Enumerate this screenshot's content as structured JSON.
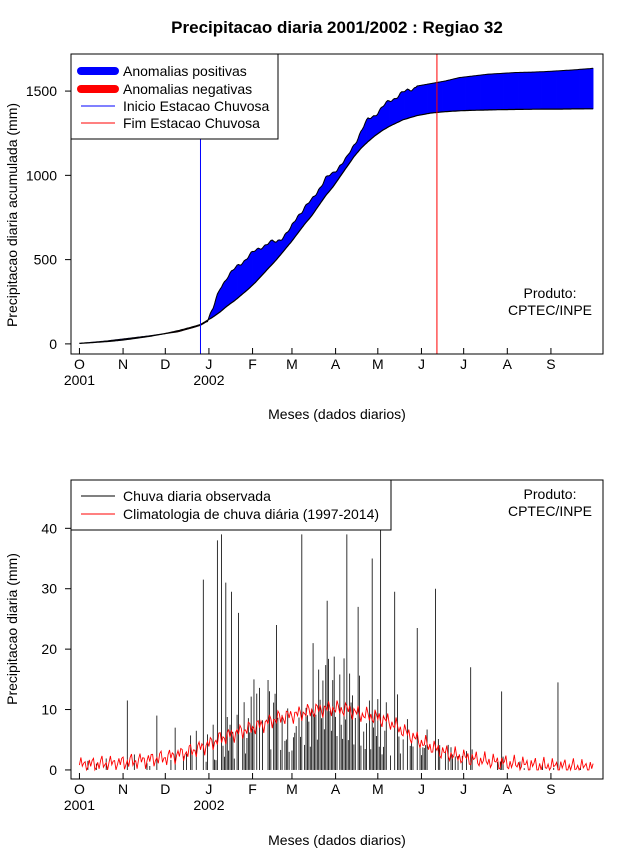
{
  "chart_data": [
    {
      "type": "area",
      "title": "Precipitacao diaria 2001/2002 : Regiao 32",
      "xlabel": "Meses (dados diarios)",
      "ylabel": "Precipitacao diaria acumulada (mm)",
      "yticks": [
        0,
        500,
        1000,
        1500
      ],
      "ylim": [
        -60,
        1720
      ],
      "xlim_days": [
        -6,
        372
      ],
      "months": [
        "O",
        "N",
        "D",
        "J",
        "F",
        "M",
        "A",
        "M",
        "J",
        "J",
        "A",
        "S"
      ],
      "month_start_days": [
        0,
        31,
        61,
        92,
        123,
        151,
        182,
        212,
        243,
        273,
        304,
        335
      ],
      "year_labels": [
        {
          "label": "2001",
          "day": 0
        },
        {
          "label": "2002",
          "day": 92
        }
      ],
      "wet_season_start_day": 86,
      "wet_season_end_day": 254,
      "observed_cumulative": {
        "day": [
          0,
          10,
          20,
          30,
          40,
          50,
          60,
          70,
          80,
          86,
          90,
          95,
          100,
          105,
          110,
          115,
          120,
          125,
          130,
          135,
          140,
          145,
          150,
          155,
          160,
          165,
          170,
          175,
          180,
          185,
          190,
          195,
          200,
          205,
          210,
          215,
          220,
          230,
          240,
          250,
          260,
          270,
          280,
          290,
          300,
          310,
          320,
          330,
          340,
          350,
          365
        ],
        "mm": [
          3,
          10,
          18,
          28,
          38,
          48,
          60,
          72,
          95,
          110,
          130,
          210,
          330,
          400,
          440,
          480,
          520,
          550,
          580,
          600,
          605,
          640,
          680,
          760,
          810,
          850,
          920,
          980,
          1010,
          1060,
          1100,
          1180,
          1260,
          1330,
          1360,
          1400,
          1440,
          1490,
          1530,
          1545,
          1560,
          1580,
          1590,
          1600,
          1605,
          1610,
          1612,
          1615,
          1620,
          1625,
          1635
        ]
      },
      "climatology_cumulative": {
        "day": [
          0,
          10,
          20,
          30,
          40,
          50,
          60,
          70,
          80,
          86,
          90,
          95,
          100,
          105,
          110,
          115,
          120,
          125,
          130,
          135,
          140,
          145,
          150,
          155,
          160,
          165,
          170,
          175,
          180,
          185,
          190,
          195,
          200,
          205,
          210,
          215,
          220,
          230,
          240,
          250,
          260,
          270,
          280,
          290,
          300,
          310,
          320,
          330,
          340,
          350,
          365
        ],
        "mm": [
          3,
          8,
          14,
          22,
          33,
          45,
          60,
          78,
          100,
          115,
          135,
          160,
          190,
          225,
          255,
          290,
          325,
          365,
          410,
          455,
          500,
          550,
          600,
          655,
          710,
          760,
          820,
          880,
          930,
          990,
          1050,
          1110,
          1160,
          1200,
          1235,
          1265,
          1290,
          1330,
          1355,
          1370,
          1378,
          1383,
          1386,
          1388,
          1390,
          1391,
          1392,
          1393,
          1393,
          1394,
          1395
        ]
      },
      "legend": {
        "position": "top-left",
        "entries": [
          {
            "label": "Anomalias positivas",
            "color": "#0000ff"
          },
          {
            "label": "Anomalias negativas",
            "color": "#ff0000"
          },
          {
            "label": "Inicio Estacao Chuvosa",
            "color": "#0000ff"
          },
          {
            "label": "Fim Estacao Chuvosa",
            "color": "#ff0000"
          }
        ]
      },
      "annotation": [
        "Produto:",
        "CPTEC/INPE"
      ]
    },
    {
      "type": "bar",
      "xlabel": "Meses (dados diarios)",
      "ylabel": "Precipitacao diaria (mm)",
      "yticks": [
        0,
        10,
        20,
        30,
        40
      ],
      "ylim": [
        -1.5,
        48
      ],
      "xlim_days": [
        -6,
        372
      ],
      "months": [
        "O",
        "N",
        "D",
        "J",
        "F",
        "M",
        "A",
        "M",
        "J",
        "J",
        "A",
        "S"
      ],
      "month_start_days": [
        0,
        31,
        61,
        92,
        123,
        151,
        182,
        212,
        243,
        273,
        304,
        335
      ],
      "year_labels": [
        {
          "label": "2001",
          "day": 0
        },
        {
          "label": "2002",
          "day": 92
        }
      ],
      "observed_daily_peaks": [
        {
          "day": 34,
          "mm": 11.5
        },
        {
          "day": 55,
          "mm": 9
        },
        {
          "day": 68,
          "mm": 7
        },
        {
          "day": 88,
          "mm": 31.5
        },
        {
          "day": 98,
          "mm": 38
        },
        {
          "day": 101,
          "mm": 39
        },
        {
          "day": 104,
          "mm": 31
        },
        {
          "day": 108,
          "mm": 29.5
        },
        {
          "day": 113,
          "mm": 26
        },
        {
          "day": 124,
          "mm": 15
        },
        {
          "day": 140,
          "mm": 24
        },
        {
          "day": 158,
          "mm": 39
        },
        {
          "day": 166,
          "mm": 21
        },
        {
          "day": 176,
          "mm": 28
        },
        {
          "day": 190,
          "mm": 39
        },
        {
          "day": 198,
          "mm": 27
        },
        {
          "day": 208,
          "mm": 35
        },
        {
          "day": 214,
          "mm": 40
        },
        {
          "day": 224,
          "mm": 29.5
        },
        {
          "day": 240,
          "mm": 23.5
        },
        {
          "day": 253,
          "mm": 30
        },
        {
          "day": 278,
          "mm": 17
        },
        {
          "day": 300,
          "mm": 13
        },
        {
          "day": 340,
          "mm": 14.5
        }
      ],
      "climatology_daily": {
        "day": [
          0,
          15,
          30,
          45,
          60,
          75,
          90,
          100,
          110,
          120,
          130,
          140,
          150,
          160,
          170,
          180,
          190,
          200,
          210,
          220,
          230,
          240,
          250,
          260,
          270,
          280,
          290,
          300,
          310,
          320,
          330,
          340,
          350,
          365
        ],
        "mm": [
          0.8,
          1.0,
          1.2,
          1.6,
          2.0,
          2.8,
          4.0,
          5.2,
          6.0,
          6.8,
          7.5,
          8.5,
          9.0,
          9.5,
          10.0,
          10.2,
          10.0,
          9.2,
          8.8,
          8.0,
          6.5,
          5.0,
          3.8,
          2.8,
          2.2,
          1.8,
          1.5,
          1.2,
          1.0,
          0.8,
          0.7,
          0.6,
          0.5,
          0.5
        ]
      },
      "legend": {
        "position": "top-left",
        "entries": [
          {
            "label": "Chuva diaria observada",
            "color": "#000000"
          },
          {
            "label": "Climatologia de chuva diária (1997-2014)",
            "color": "#ff0000"
          }
        ]
      },
      "annotation": [
        "Produto:",
        "CPTEC/INPE"
      ]
    }
  ]
}
